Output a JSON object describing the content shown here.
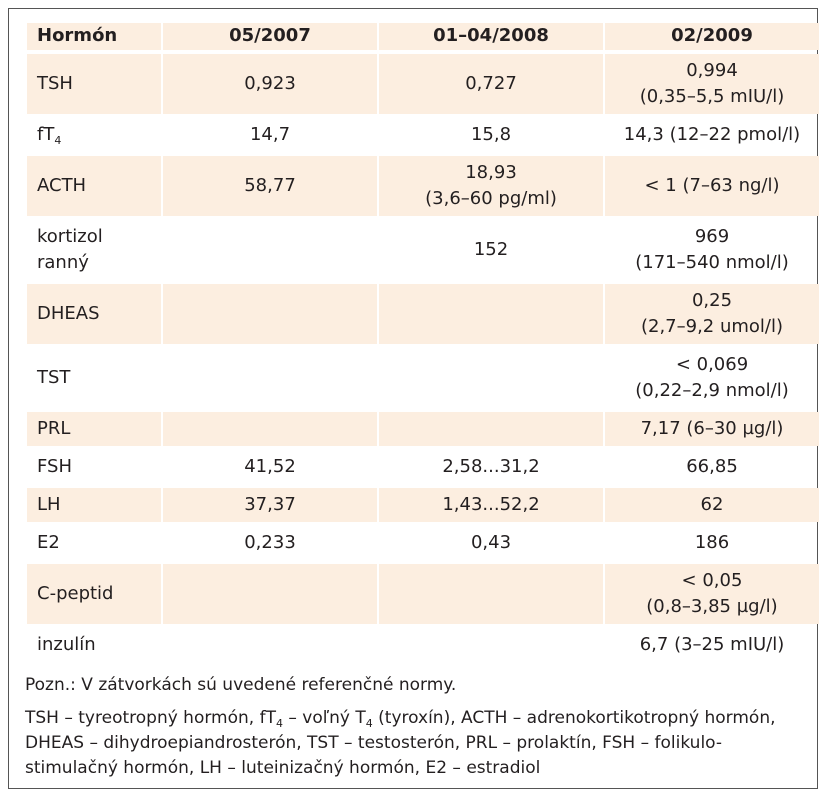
{
  "table": {
    "headers": [
      "Hormón",
      "05/2007",
      "01–04/2008",
      "02/2009"
    ],
    "rows": [
      {
        "name": "TSH",
        "c1": "0,923",
        "c2": "0,727",
        "c3a": "0,994",
        "c3b": "(0,35–5,5 mIU/l)"
      },
      {
        "name": "fT",
        "name_sub": "4",
        "c1": "14,7",
        "c2": "15,8",
        "c3a": "14,3 (12–22 pmol/l)",
        "c3b": ""
      },
      {
        "name": "ACTH",
        "c1": "58,77",
        "c2a": "18,93",
        "c2b": "(3,6–60 pg/ml)",
        "c3a": "< 1 (7–63 ng/l)",
        "c3b": ""
      },
      {
        "name": "kortizol",
        "name_b": "ranný",
        "c1": "",
        "c2": "152",
        "c3a": "969",
        "c3b": "(171–540 nmol/l)"
      },
      {
        "name": "DHEAS",
        "c1": "",
        "c2": "",
        "c3a": "0,25",
        "c3b": "(2,7–9,2 umol/l)"
      },
      {
        "name": "TST",
        "c1": "",
        "c2": "",
        "c3a": "< 0,069",
        "c3b": "(0,22–2,9 nmol/l)"
      },
      {
        "name": "PRL",
        "c1": "",
        "c2": "",
        "c3a": "7,17 (6–30 µg/l)",
        "c3b": ""
      },
      {
        "name": "FSH",
        "c1": "41,52",
        "c2": "2,58...31,2",
        "c3a": "66,85",
        "c3b": ""
      },
      {
        "name": "LH",
        "c1": "37,37",
        "c2": "1,43...52,2",
        "c3a": "62",
        "c3b": ""
      },
      {
        "name": "E2",
        "c1": "0,233",
        "c2": "0,43",
        "c3a": "186",
        "c3b": ""
      },
      {
        "name": "C-peptid",
        "c1": "",
        "c2": "",
        "c3a": "< 0,05",
        "c3b": "(0,8–3,85 µg/l)"
      },
      {
        "name": "inzulín",
        "c1": "",
        "c2": "",
        "c3a": "6,7 (3–25 mIU/l)",
        "c3b": ""
      }
    ]
  },
  "notes": {
    "pozn": "Pozn.: V zátvorkách sú uvedené referenčné normy.",
    "abbr_part1": "TSH – tyreotropný hormón, fT",
    "abbr_sub1": "4",
    "abbr_part2": " – voľný T",
    "abbr_sub2": "4",
    "abbr_part3": " (tyroxín), ACTH – adrenokortikotropný hormón, DHEAS – dihydroepiandrosterón, TST – testosterón, PRL – prolaktín, FSH – folikulo-stimulačný hormón, LH – luteinizačný hormón, E2 – estradiol"
  }
}
